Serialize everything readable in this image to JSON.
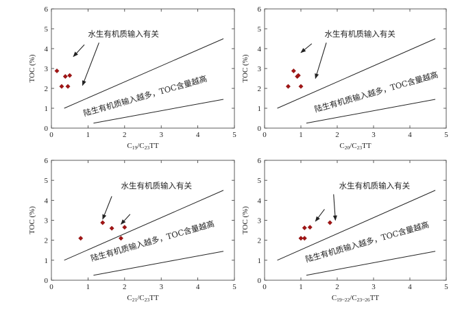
{
  "style": {
    "marker_color": "#a31515",
    "line_color": "#222222",
    "arrow_color": "#222222"
  },
  "chart_data": [
    {
      "type": "scatter",
      "title": "",
      "xlabel": "C19/C23TT",
      "ylabel": "TOC (%)",
      "xlim": [
        0,
        5
      ],
      "ylim": [
        0,
        6
      ],
      "xticks": [
        "0",
        "1",
        "2",
        "3",
        "4",
        "5"
      ],
      "yticks": [
        "0",
        "1",
        "2",
        "3",
        "4",
        "5",
        "6"
      ],
      "grid": false,
      "points": [
        {
          "x": 0.15,
          "y": 2.88
        },
        {
          "x": 0.28,
          "y": 2.1
        },
        {
          "x": 0.38,
          "y": 2.6
        },
        {
          "x": 0.45,
          "y": 2.1
        },
        {
          "x": 0.5,
          "y": 2.65
        }
      ],
      "lines": [
        {
          "x1": 0.35,
          "y1": 1.0,
          "x2": 4.7,
          "y2": 4.5
        },
        {
          "x1": 1.15,
          "y1": 0.25,
          "x2": 4.7,
          "y2": 1.45
        }
      ],
      "annotations": {
        "aquatic": {
          "text": "水生有机质输入有关",
          "x": 1.0,
          "y": 4.6
        },
        "terrestrial": {
          "text": "陆生有机质输入越多，TOC含量越高",
          "x": 0.9,
          "y": 0.6,
          "rotate_deg": -16
        }
      },
      "arrows": [
        {
          "x1": 0.9,
          "y1": 4.2,
          "x2": 0.6,
          "y2": 3.6
        },
        {
          "x1": 1.3,
          "y1": 4.3,
          "x2": 0.85,
          "y2": 2.15
        }
      ]
    },
    {
      "type": "scatter",
      "title": "",
      "xlabel": "C20/C23TT",
      "ylabel": "TOC (%)",
      "xlim": [
        0,
        5
      ],
      "ylim": [
        0,
        6
      ],
      "xticks": [
        "0",
        "1",
        "2",
        "3",
        "4",
        "5"
      ],
      "yticks": [
        "0",
        "1",
        "2",
        "3",
        "4",
        "5",
        "6"
      ],
      "grid": false,
      "points": [
        {
          "x": 0.65,
          "y": 2.1
        },
        {
          "x": 0.8,
          "y": 2.88
        },
        {
          "x": 0.9,
          "y": 2.6
        },
        {
          "x": 0.93,
          "y": 2.65
        },
        {
          "x": 1.0,
          "y": 2.1
        }
      ],
      "lines": [
        {
          "x1": 0.35,
          "y1": 1.0,
          "x2": 4.7,
          "y2": 4.5
        },
        {
          "x1": 1.15,
          "y1": 0.25,
          "x2": 4.7,
          "y2": 1.45
        }
      ],
      "annotations": {
        "aquatic": {
          "text": "水生有机质输入有关",
          "x": 1.65,
          "y": 4.6
        },
        "terrestrial": {
          "text": "陆生有机质输入越多，TOC含量越高",
          "x": 1.4,
          "y": 0.8,
          "rotate_deg": -16
        }
      },
      "arrows": [
        {
          "x1": 1.3,
          "y1": 4.25,
          "x2": 1.0,
          "y2": 3.8
        },
        {
          "x1": 1.7,
          "y1": 4.3,
          "x2": 1.4,
          "y2": 2.5
        }
      ]
    },
    {
      "type": "scatter",
      "title": "",
      "xlabel": "C21/C23TT",
      "ylabel": "TOC (%)",
      "xlim": [
        0,
        5
      ],
      "ylim": [
        0,
        6
      ],
      "xticks": [
        "0",
        "1",
        "2",
        "3",
        "4",
        "5"
      ],
      "yticks": [
        "0",
        "1",
        "2",
        "3",
        "4",
        "5",
        "6"
      ],
      "grid": false,
      "points": [
        {
          "x": 0.8,
          "y": 2.1
        },
        {
          "x": 1.4,
          "y": 2.88
        },
        {
          "x": 1.65,
          "y": 2.6
        },
        {
          "x": 1.9,
          "y": 2.1
        },
        {
          "x": 2.0,
          "y": 2.65
        }
      ],
      "lines": [
        {
          "x1": 0.35,
          "y1": 1.0,
          "x2": 4.7,
          "y2": 4.5
        },
        {
          "x1": 1.15,
          "y1": 0.25,
          "x2": 4.7,
          "y2": 1.45
        }
      ],
      "annotations": {
        "aquatic": {
          "text": "水生有机质输入有关",
          "x": 1.9,
          "y": 4.6
        },
        "terrestrial": {
          "text": "陆生有机质输入越多，TOC含量越高",
          "x": 1.1,
          "y": 0.95,
          "rotate_deg": -16
        }
      },
      "arrows": [
        {
          "x1": 1.65,
          "y1": 4.2,
          "x2": 1.4,
          "y2": 3.05
        },
        {
          "x1": 2.15,
          "y1": 3.3,
          "x2": 1.9,
          "y2": 2.8
        }
      ]
    },
    {
      "type": "scatter",
      "title": "",
      "xlabel": "C19~22/C23~26TT",
      "ylabel": "TOC (%)",
      "xlim": [
        0,
        5
      ],
      "ylim": [
        0,
        6
      ],
      "xticks": [
        "0",
        "1",
        "2",
        "3",
        "4",
        "5"
      ],
      "yticks": [
        "0",
        "1",
        "2",
        "3",
        "4",
        "5",
        "6"
      ],
      "grid": false,
      "points": [
        {
          "x": 1.0,
          "y": 2.1
        },
        {
          "x": 1.1,
          "y": 2.1
        },
        {
          "x": 1.1,
          "y": 2.62
        },
        {
          "x": 1.25,
          "y": 2.65
        },
        {
          "x": 1.8,
          "y": 2.88
        }
      ],
      "lines": [
        {
          "x1": 0.35,
          "y1": 1.0,
          "x2": 4.7,
          "y2": 4.5
        },
        {
          "x1": 1.15,
          "y1": 0.25,
          "x2": 4.7,
          "y2": 1.45
        }
      ],
      "annotations": {
        "aquatic": {
          "text": "水生有机质输入有关",
          "x": 2.05,
          "y": 4.6
        },
        "terrestrial": {
          "text": "陆生有机质输入越多，TOC含量越高",
          "x": 1.15,
          "y": 0.9,
          "rotate_deg": -16
        }
      },
      "arrows": [
        {
          "x1": 1.9,
          "y1": 4.3,
          "x2": 1.95,
          "y2": 3.0
        },
        {
          "x1": 1.65,
          "y1": 3.55,
          "x2": 1.4,
          "y2": 2.95
        }
      ]
    }
  ]
}
